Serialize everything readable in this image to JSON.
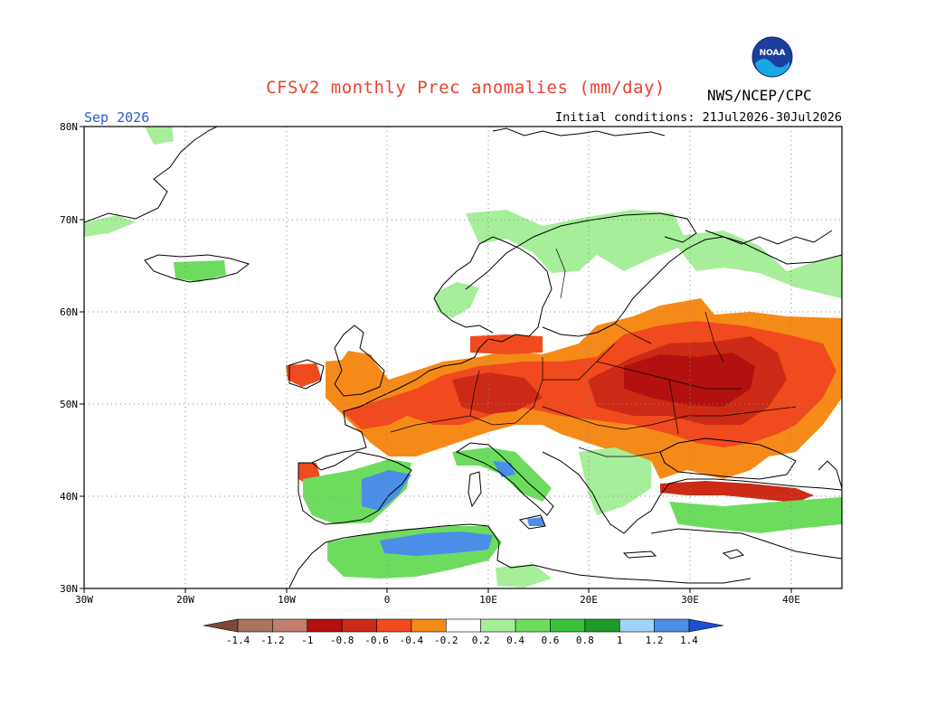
{
  "header": {
    "title": "CFSv2 monthly Prec anomalies (mm/day)",
    "agency": "NWS/NCEP/CPC",
    "month": "Sep 2026",
    "initial_conditions": "Initial conditions: 21Jul2026-30Jul2026"
  },
  "logo": {
    "name": "noaa-logo",
    "text": "NOAA"
  },
  "map": {
    "lon_range": [
      -30,
      45
    ],
    "lat_range": [
      30,
      80
    ],
    "lat_labels": [
      "30N",
      "40N",
      "50N",
      "60N",
      "70N",
      "80N"
    ],
    "lon_labels": [
      "30W",
      "20W",
      "10W",
      "0",
      "10E",
      "20E",
      "30E",
      "40E"
    ],
    "grid": "dotted"
  },
  "colorbar": {
    "labels": [
      "-1.4",
      "-1.2",
      "-1",
      "-0.8",
      "-0.6",
      "-0.4",
      "-0.2",
      "0.2",
      "0.4",
      "0.6",
      "0.8",
      "1",
      "1.2",
      "1.4"
    ],
    "colors": [
      "#7b4a3a",
      "#a8735f",
      "#c07e6e",
      "#b31010",
      "#cc2a16",
      "#f04a1e",
      "#f58a18",
      "#ffffff",
      "#a6ee9a",
      "#6ddc5e",
      "#38c23a",
      "#1e9a28",
      "#a0d4f6",
      "#4b8ee8",
      "#1c4fd1"
    ]
  },
  "anomaly_regions": [
    {
      "name": "eastern-europe-dry-core",
      "color": "#cc2a16"
    },
    {
      "name": "russia-dry-core",
      "color": "#b31010"
    },
    {
      "name": "central-europe-dry",
      "color": "#f04a1e"
    },
    {
      "name": "wide-dry-orange",
      "color": "#f58a18"
    },
    {
      "name": "spain-wet",
      "color": "#38c23a"
    },
    {
      "name": "north-africa-wet",
      "color": "#4b8ee8"
    },
    {
      "name": "scandinavia-wet",
      "color": "#a6ee9a"
    }
  ]
}
